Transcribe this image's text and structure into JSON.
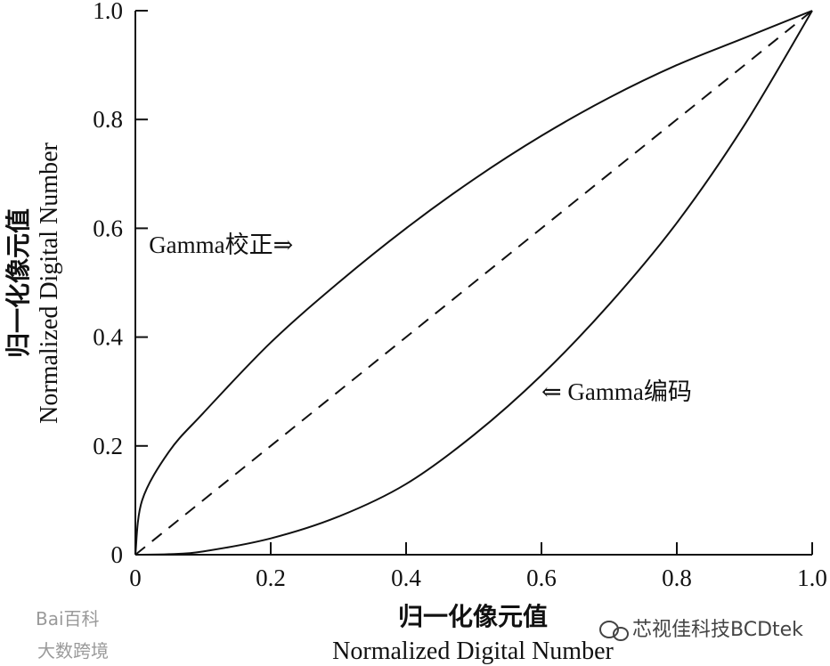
{
  "chart_data": {
    "type": "line",
    "title": "",
    "xlabel_cn": "归一化像元值",
    "xlabel_en": "Normalized Digital Number",
    "ylabel_cn": "归一化像元值",
    "ylabel_en": "Normalized Digital Number",
    "xlim": [
      0,
      1
    ],
    "ylim": [
      0,
      1
    ],
    "x_ticks": [
      0,
      0.2,
      0.4,
      0.6,
      0.8,
      1.0
    ],
    "x_tick_labels": [
      "0",
      "0.2",
      "0.4",
      "0.6",
      "0.8",
      "1.0"
    ],
    "y_ticks": [
      0,
      0.2,
      0.4,
      0.6,
      0.8,
      1.0
    ],
    "y_tick_labels": [
      "0",
      "0.2",
      "0.4",
      "0.6",
      "0.8",
      "1.0"
    ],
    "grid": false,
    "legend": "none",
    "series": [
      {
        "style": "solid",
        "x": [
          0,
          0.01,
          0.05,
          0.1,
          0.2,
          0.3,
          0.4,
          0.5,
          0.6,
          0.7,
          0.8,
          0.9,
          1.0
        ],
        "y": [
          0,
          0.1,
          0.19,
          0.26,
          0.39,
          0.5,
          0.6,
          0.69,
          0.77,
          0.84,
          0.9,
          0.95,
          1.0
        ]
      },
      {
        "style": "dashed",
        "x": [
          0,
          1
        ],
        "y": [
          0,
          1
        ]
      },
      {
        "style": "solid",
        "x": [
          0,
          0.05,
          0.1,
          0.2,
          0.3,
          0.4,
          0.5,
          0.6,
          0.7,
          0.8,
          0.9,
          1.0
        ],
        "y": [
          0,
          0.001,
          0.006,
          0.03,
          0.07,
          0.13,
          0.22,
          0.33,
          0.46,
          0.61,
          0.79,
          1.0
        ]
      }
    ],
    "annotations": [
      {
        "text": "Gamma校正⇒",
        "x": 0.02,
        "y": 0.555
      },
      {
        "text": "⇐ Gamma编码",
        "x": 0.6,
        "y": 0.285
      }
    ]
  },
  "watermarks": {
    "left_top": "Bai百科",
    "left_bottom": "大数跨境",
    "right": "芯视佳科技BCDtek"
  },
  "colors": {
    "line": "#111111",
    "watermark": "#9a9a9a"
  }
}
